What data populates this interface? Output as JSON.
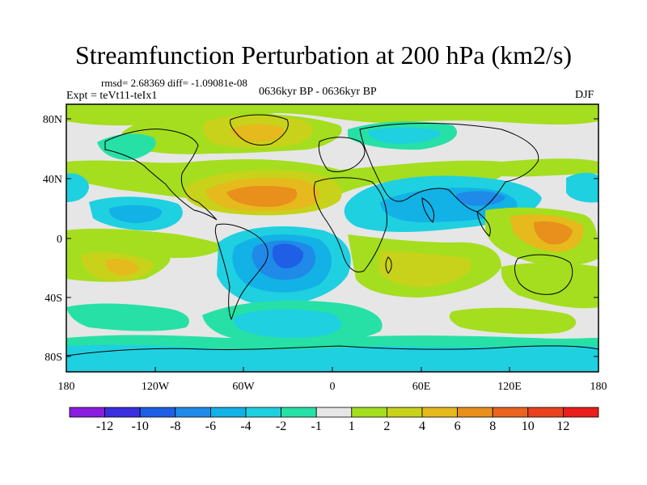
{
  "title": "Streamfunction Perturbation at 200 hPa (km2/s)",
  "rmsd_line": "rmsd= 2.68369 diff= -1.09081e-08",
  "experiment": "Expt = teVt11-teIx1",
  "period": "0636kyr BP - 0636kyr BP",
  "season": "DJF",
  "lat_labels": [
    "80N",
    "40N",
    "0",
    "40S",
    "80S"
  ],
  "lon_labels": [
    "180",
    "120W",
    "60W",
    "0",
    "60E",
    "120E",
    "180"
  ],
  "colorbar": {
    "labels": [
      "-12",
      "-10",
      "-8",
      "-6",
      "-4",
      "-2",
      "-1",
      "1",
      "2",
      "4",
      "6",
      "8",
      "10",
      "12"
    ],
    "colors": [
      "#8a1de0",
      "#3b2fe0",
      "#1f5fe6",
      "#1f8ae8",
      "#12b1e6",
      "#1fd0e0",
      "#27e0a6",
      "#e6e6e6",
      "#a4de1f",
      "#c8d21a",
      "#e6b91c",
      "#e88f1c",
      "#e8641f",
      "#e8421f",
      "#e81f1a"
    ]
  }
}
